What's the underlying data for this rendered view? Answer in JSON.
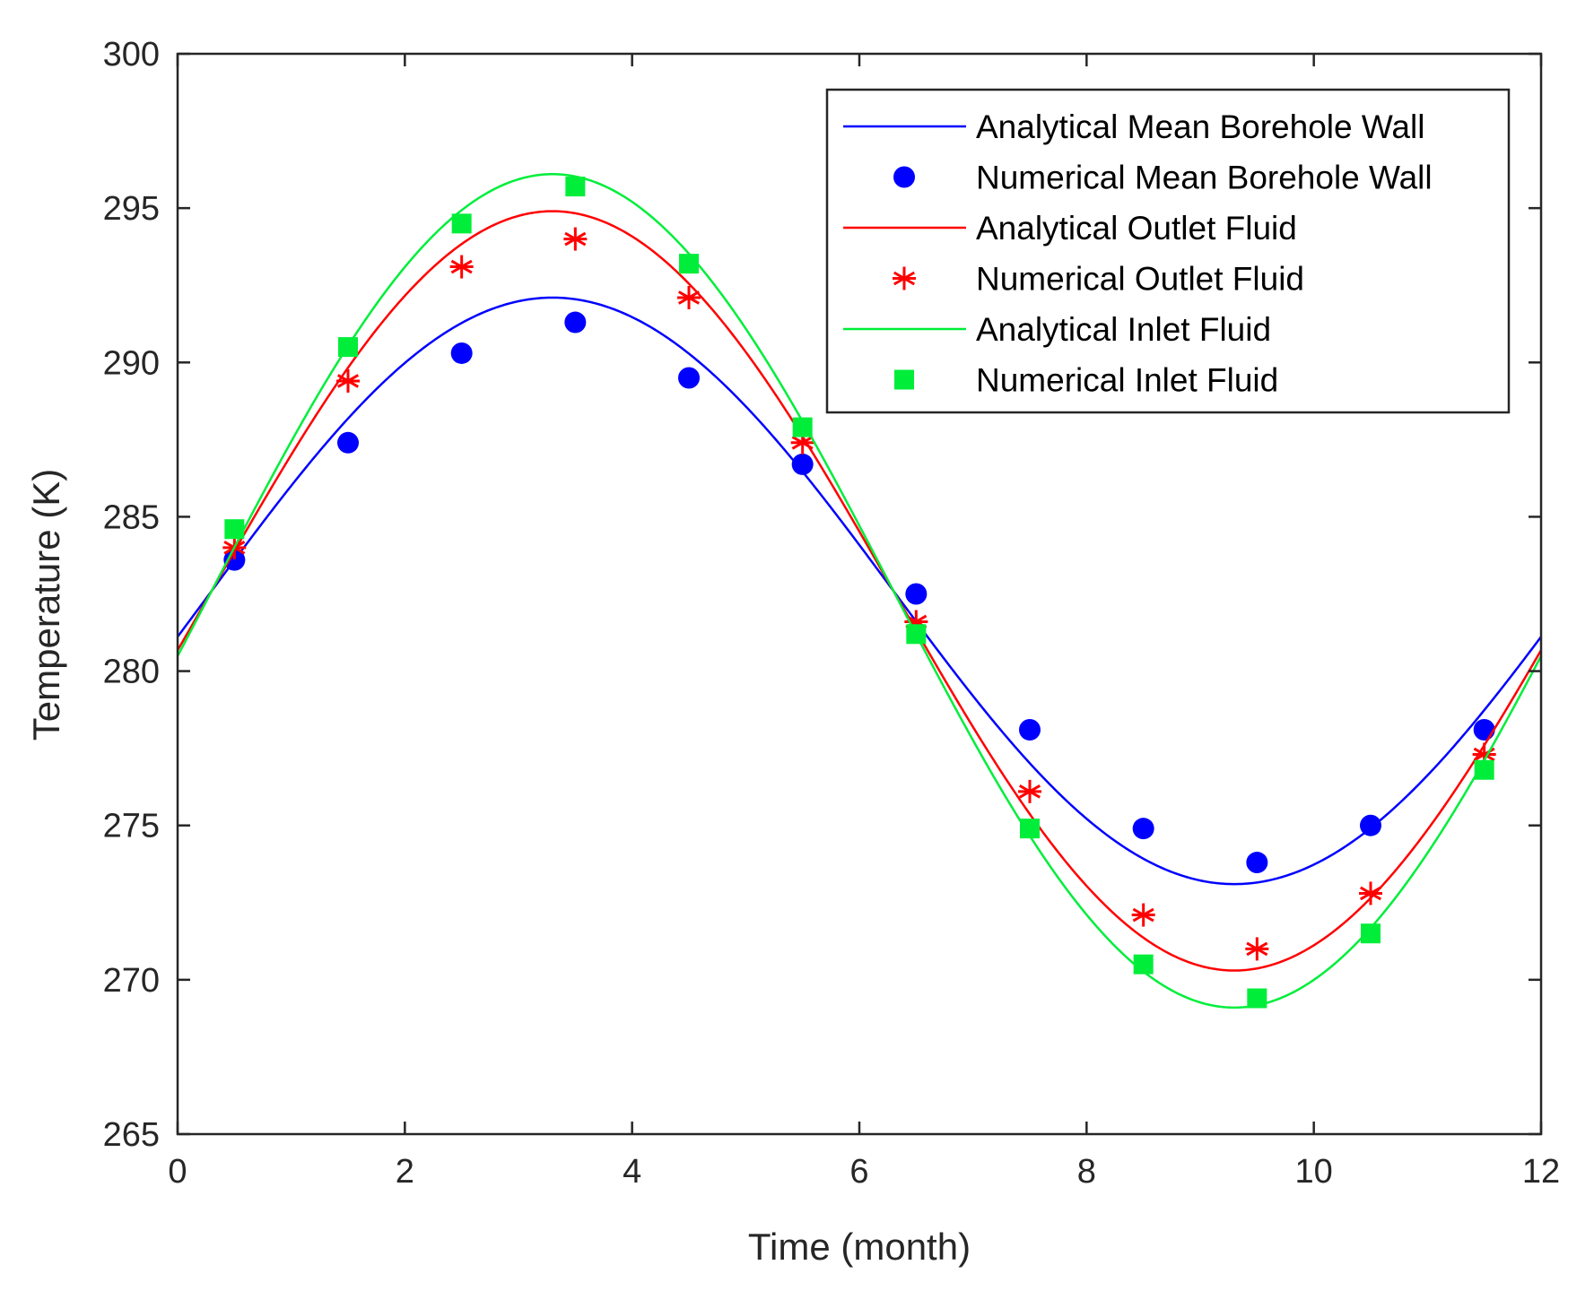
{
  "chart_data": {
    "type": "line",
    "xlabel": "Time (month)",
    "ylabel": "Temperature (K)",
    "xlim": [
      0,
      12
    ],
    "ylim": [
      265,
      300
    ],
    "xticks": [
      0,
      2,
      4,
      6,
      8,
      10,
      12
    ],
    "yticks": [
      265,
      270,
      275,
      280,
      285,
      290,
      295,
      300
    ],
    "grid": false,
    "legend_position": "top-right",
    "series": [
      {
        "name": "Analytical Mean Borehole Wall",
        "kind": "line",
        "color": "#0000ff",
        "model": {
          "mean": 282.6,
          "amplitude": 9.5,
          "phase_month": 0.3,
          "period_month": 12.0
        }
      },
      {
        "name": "Numerical Mean Borehole Wall",
        "kind": "marker",
        "marker": "circle",
        "color": "#0000ff",
        "x": [
          0.5,
          1.5,
          2.5,
          3.5,
          4.5,
          5.5,
          6.5,
          7.5,
          8.5,
          9.5,
          10.5,
          11.5
        ],
        "y": [
          283.6,
          287.4,
          290.3,
          291.3,
          289.5,
          286.7,
          282.5,
          278.1,
          274.9,
          273.8,
          275.0,
          278.1
        ]
      },
      {
        "name": "Analytical Outlet Fluid",
        "kind": "line",
        "color": "#ff0000",
        "model": {
          "mean": 282.6,
          "amplitude": 12.3,
          "phase_month": 0.3,
          "period_month": 12.0
        }
      },
      {
        "name": "Numerical Outlet Fluid",
        "kind": "marker",
        "marker": "asterisk",
        "color": "#ff0000",
        "x": [
          0.5,
          1.5,
          2.5,
          3.5,
          4.5,
          5.5,
          6.5,
          7.5,
          8.5,
          9.5,
          10.5,
          11.5
        ],
        "y": [
          284.0,
          289.4,
          293.1,
          294.0,
          292.1,
          287.4,
          281.6,
          276.1,
          272.1,
          271.0,
          272.8,
          277.3
        ]
      },
      {
        "name": "Analytical Inlet Fluid",
        "kind": "line",
        "color": "#00ee3a",
        "model": {
          "mean": 282.6,
          "amplitude": 13.5,
          "phase_month": 0.3,
          "period_month": 12.0
        }
      },
      {
        "name": "Numerical Inlet Fluid",
        "kind": "marker",
        "marker": "square",
        "color": "#00ee3a",
        "x": [
          0.5,
          1.5,
          2.5,
          3.5,
          4.5,
          5.5,
          6.5,
          7.5,
          8.5,
          9.5,
          10.5,
          11.5
        ],
        "y": [
          284.6,
          290.5,
          294.5,
          295.7,
          293.2,
          287.9,
          281.2,
          274.9,
          270.5,
          269.4,
          271.5,
          276.8
        ]
      }
    ]
  }
}
